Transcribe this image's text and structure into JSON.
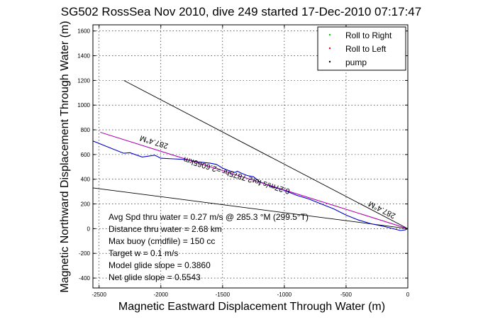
{
  "chart_data": {
    "type": "line",
    "title": "SG502 RossSea Nov 2010, dive 249 started 17-Dec-2010 07:17:47",
    "xlabel": "Magnetic Eastward Displacement Through Water (m)",
    "ylabel": "Magnetic Northward Displacement Through Water (m)",
    "xlim": [
      -2550,
      0
    ],
    "ylim": [
      -480,
      1650
    ],
    "xticks": [
      -2500,
      -2000,
      -1500,
      -1000,
      -500,
      0
    ],
    "yticks": [
      -400,
      -200,
      0,
      200,
      400,
      600,
      800,
      1000,
      1200,
      1400,
      1600
    ],
    "grid": true,
    "legend_position": "top-right",
    "legend": [
      {
        "label": "Roll to Right",
        "color": "#00cc00"
      },
      {
        "label": "Roll to Left",
        "color": "#ff0000"
      },
      {
        "label": "pump",
        "color": "#000000"
      }
    ],
    "series": [
      {
        "id": "track",
        "color": "#0000cc",
        "x": [
          -2550,
          -2400,
          -2300,
          -2250,
          -2150,
          -2050,
          -2000,
          -1900,
          -1800,
          -1700,
          -1600,
          -1550,
          -1500,
          -1450,
          -1400,
          -1380,
          -1350,
          -1300,
          -1250,
          -1200,
          -1150,
          -1100,
          -1000,
          -900,
          -800,
          -700,
          -600,
          -500,
          -400,
          -300,
          -200,
          -120,
          -60,
          -20,
          0
        ],
        "y": [
          710,
          650,
          610,
          615,
          580,
          595,
          570,
          565,
          560,
          540,
          530,
          520,
          490,
          470,
          455,
          465,
          450,
          430,
          420,
          380,
          360,
          340,
          310,
          270,
          240,
          200,
          160,
          110,
          70,
          40,
          20,
          0,
          -15,
          -10,
          0
        ]
      },
      {
        "id": "heading-line",
        "color": "#cc00cc",
        "x": [
          -2490,
          0
        ],
        "y": [
          780,
          0
        ]
      },
      {
        "id": "line-top",
        "color": "#000000",
        "x": [
          -2300,
          0
        ],
        "y": [
          1200,
          0
        ]
      },
      {
        "id": "line-mid",
        "color": "#000000",
        "x": [
          -2490,
          0
        ],
        "y": [
          780,
          0
        ]
      },
      {
        "id": "line-low",
        "color": "#000000",
        "x": [
          -2550,
          0
        ],
        "y": [
          330,
          0
        ]
      }
    ],
    "annotations": [
      {
        "text": "287.4°M",
        "x": -2050,
        "y": 720,
        "angle": 197
      },
      {
        "text": "0.27m/s for2 7875hr =2.6065km",
        "x": -1380,
        "y": 450,
        "angle": 197
      },
      {
        "text": "287.4°M",
        "x": -200,
        "y": 170,
        "angle": 207
      }
    ],
    "info_lines": [
      "Avg Spd thru water =  0.27 m/s @ 285.3   °M (299.5°T)",
      "Distance thru water =  2.68 km",
      "Max buoy (cmdfile) = 150 cc",
      "Target w = 0.1 m/s",
      "Model glide slope = 0.3860",
      "Net glide slope = 0.5543"
    ]
  }
}
